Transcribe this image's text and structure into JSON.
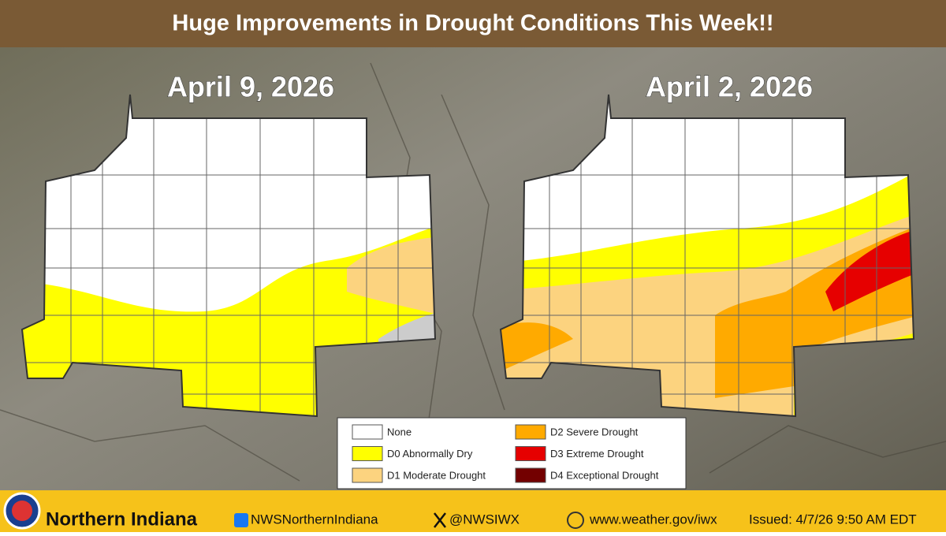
{
  "header": {
    "title": "Huge Improvements in Drought Conditions This Week!!"
  },
  "maps": [
    {
      "date": "April 9, 2026"
    },
    {
      "date": "April 2, 2026"
    }
  ],
  "legend": {
    "items": [
      {
        "label": "None",
        "color": "#ffffff"
      },
      {
        "label": "D0 Abnormally Dry",
        "color": "#ffff00"
      },
      {
        "label": "D1 Moderate Drought",
        "color": "#fcd37f"
      },
      {
        "label": "D2 Severe Drought",
        "color": "#ffaa00"
      },
      {
        "label": "D3 Extreme Drought",
        "color": "#e60000"
      },
      {
        "label": "D4 Exceptional Drought",
        "color": "#730000"
      }
    ]
  },
  "footer": {
    "office": "Northern Indiana",
    "facebook": "NWSNorthernIndiana",
    "x": "@NWSIWX",
    "website": "www.weather.gov/iwx",
    "issued": "Issued:  4/7/26 9:50 AM EDT"
  }
}
